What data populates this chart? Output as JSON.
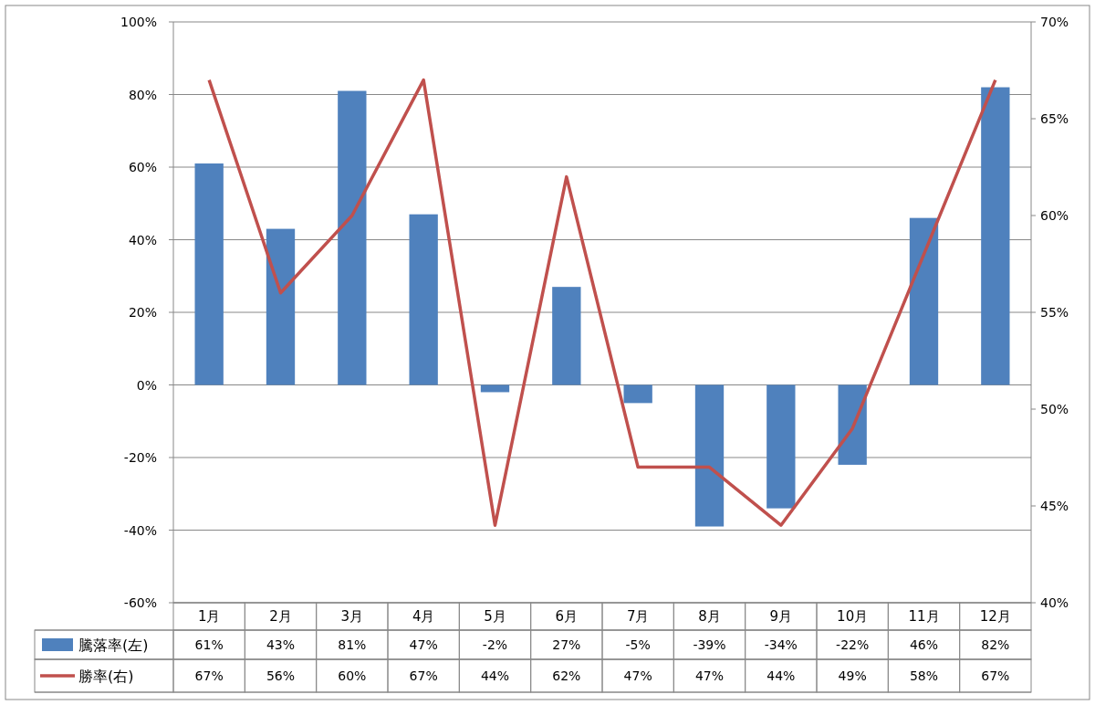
{
  "chart_data": {
    "type": "bar",
    "categories": [
      "1月",
      "2月",
      "3月",
      "4月",
      "5月",
      "6月",
      "7月",
      "8月",
      "9月",
      "10月",
      "11月",
      "12月"
    ],
    "series": [
      {
        "name": "騰落率(左)",
        "color": "#4f81bd",
        "values": [
          61,
          43,
          81,
          47,
          -2,
          27,
          -5,
          -39,
          -34,
          -22,
          46,
          82
        ],
        "value_labels": [
          "61%",
          "43%",
          "81%",
          "47%",
          "-2%",
          "27%",
          "-5%",
          "-39%",
          "-34%",
          "-22%",
          "46%",
          "82%"
        ]
      },
      {
        "name": "勝率(右)",
        "type": "line",
        "axis": "y2",
        "color": "#c0504d",
        "values": [
          67,
          56,
          60,
          67,
          44,
          62,
          47,
          47,
          44,
          49,
          58,
          67
        ],
        "value_labels": [
          "67%",
          "56%",
          "60%",
          "67%",
          "44%",
          "62%",
          "47%",
          "47%",
          "44%",
          "49%",
          "58%",
          "67%"
        ]
      }
    ],
    "ylim": [
      -60,
      100
    ],
    "yticks": [
      {
        "value": -60,
        "label": "-60%"
      },
      {
        "value": -40,
        "label": "-40%"
      },
      {
        "value": -20,
        "label": "-20%"
      },
      {
        "value": 0,
        "label": "0%"
      },
      {
        "value": 20,
        "label": "20%"
      },
      {
        "value": 40,
        "label": "40%"
      },
      {
        "value": 60,
        "label": "60%"
      },
      {
        "value": 80,
        "label": "80%"
      },
      {
        "value": 100,
        "label": "100%"
      }
    ],
    "y2lim": [
      40,
      70
    ],
    "y2ticks": [
      {
        "value": 40,
        "label": "40%"
      },
      {
        "value": 45,
        "label": "45%"
      },
      {
        "value": 50,
        "label": "50%"
      },
      {
        "value": 55,
        "label": "55%"
      },
      {
        "value": 60,
        "label": "60%"
      },
      {
        "value": 65,
        "label": "65%"
      },
      {
        "value": 70,
        "label": "70%"
      }
    ],
    "grid": "y",
    "legend": "bottom left"
  }
}
